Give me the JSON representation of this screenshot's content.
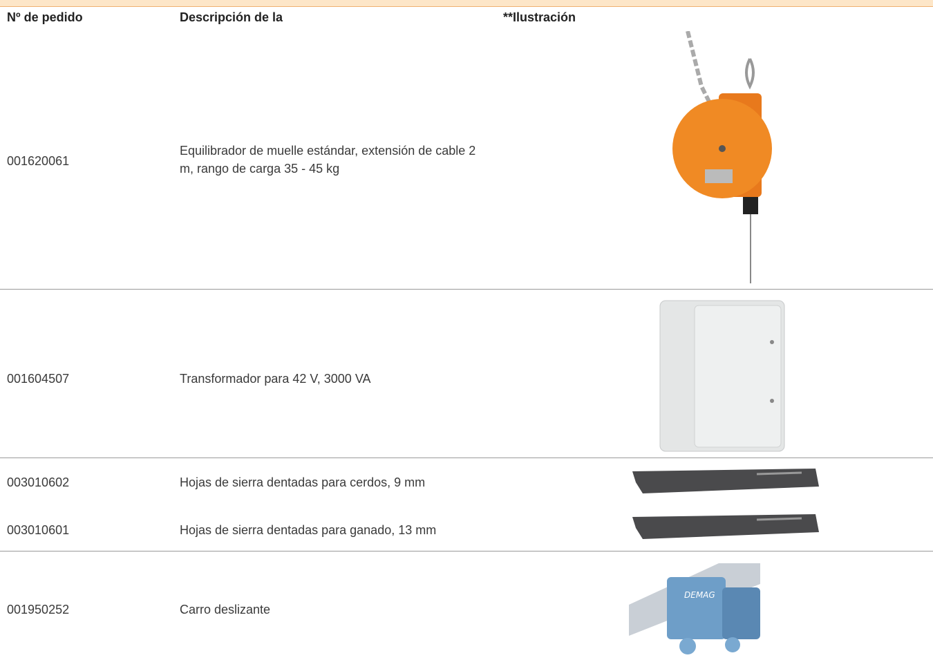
{
  "table": {
    "headers": [
      "Nº de pedido",
      "Descripción de la",
      "**Ilustración"
    ],
    "rows": [
      [
        "001620061",
        "Equilibrador de muelle estándar, extensión de cable 2 m, rango de carga 35 - 45 kg"
      ],
      [
        "001604507",
        "Transformador para 42 V, 3000 VA"
      ],
      [
        "003010602",
        "Hojas de sierra dentadas para cerdos, 9 mm"
      ],
      [
        "003010601",
        "Hojas de sierra dentadas para ganado, 13 mm"
      ],
      [
        "001950252",
        "Carro deslizante"
      ]
    ]
  }
}
